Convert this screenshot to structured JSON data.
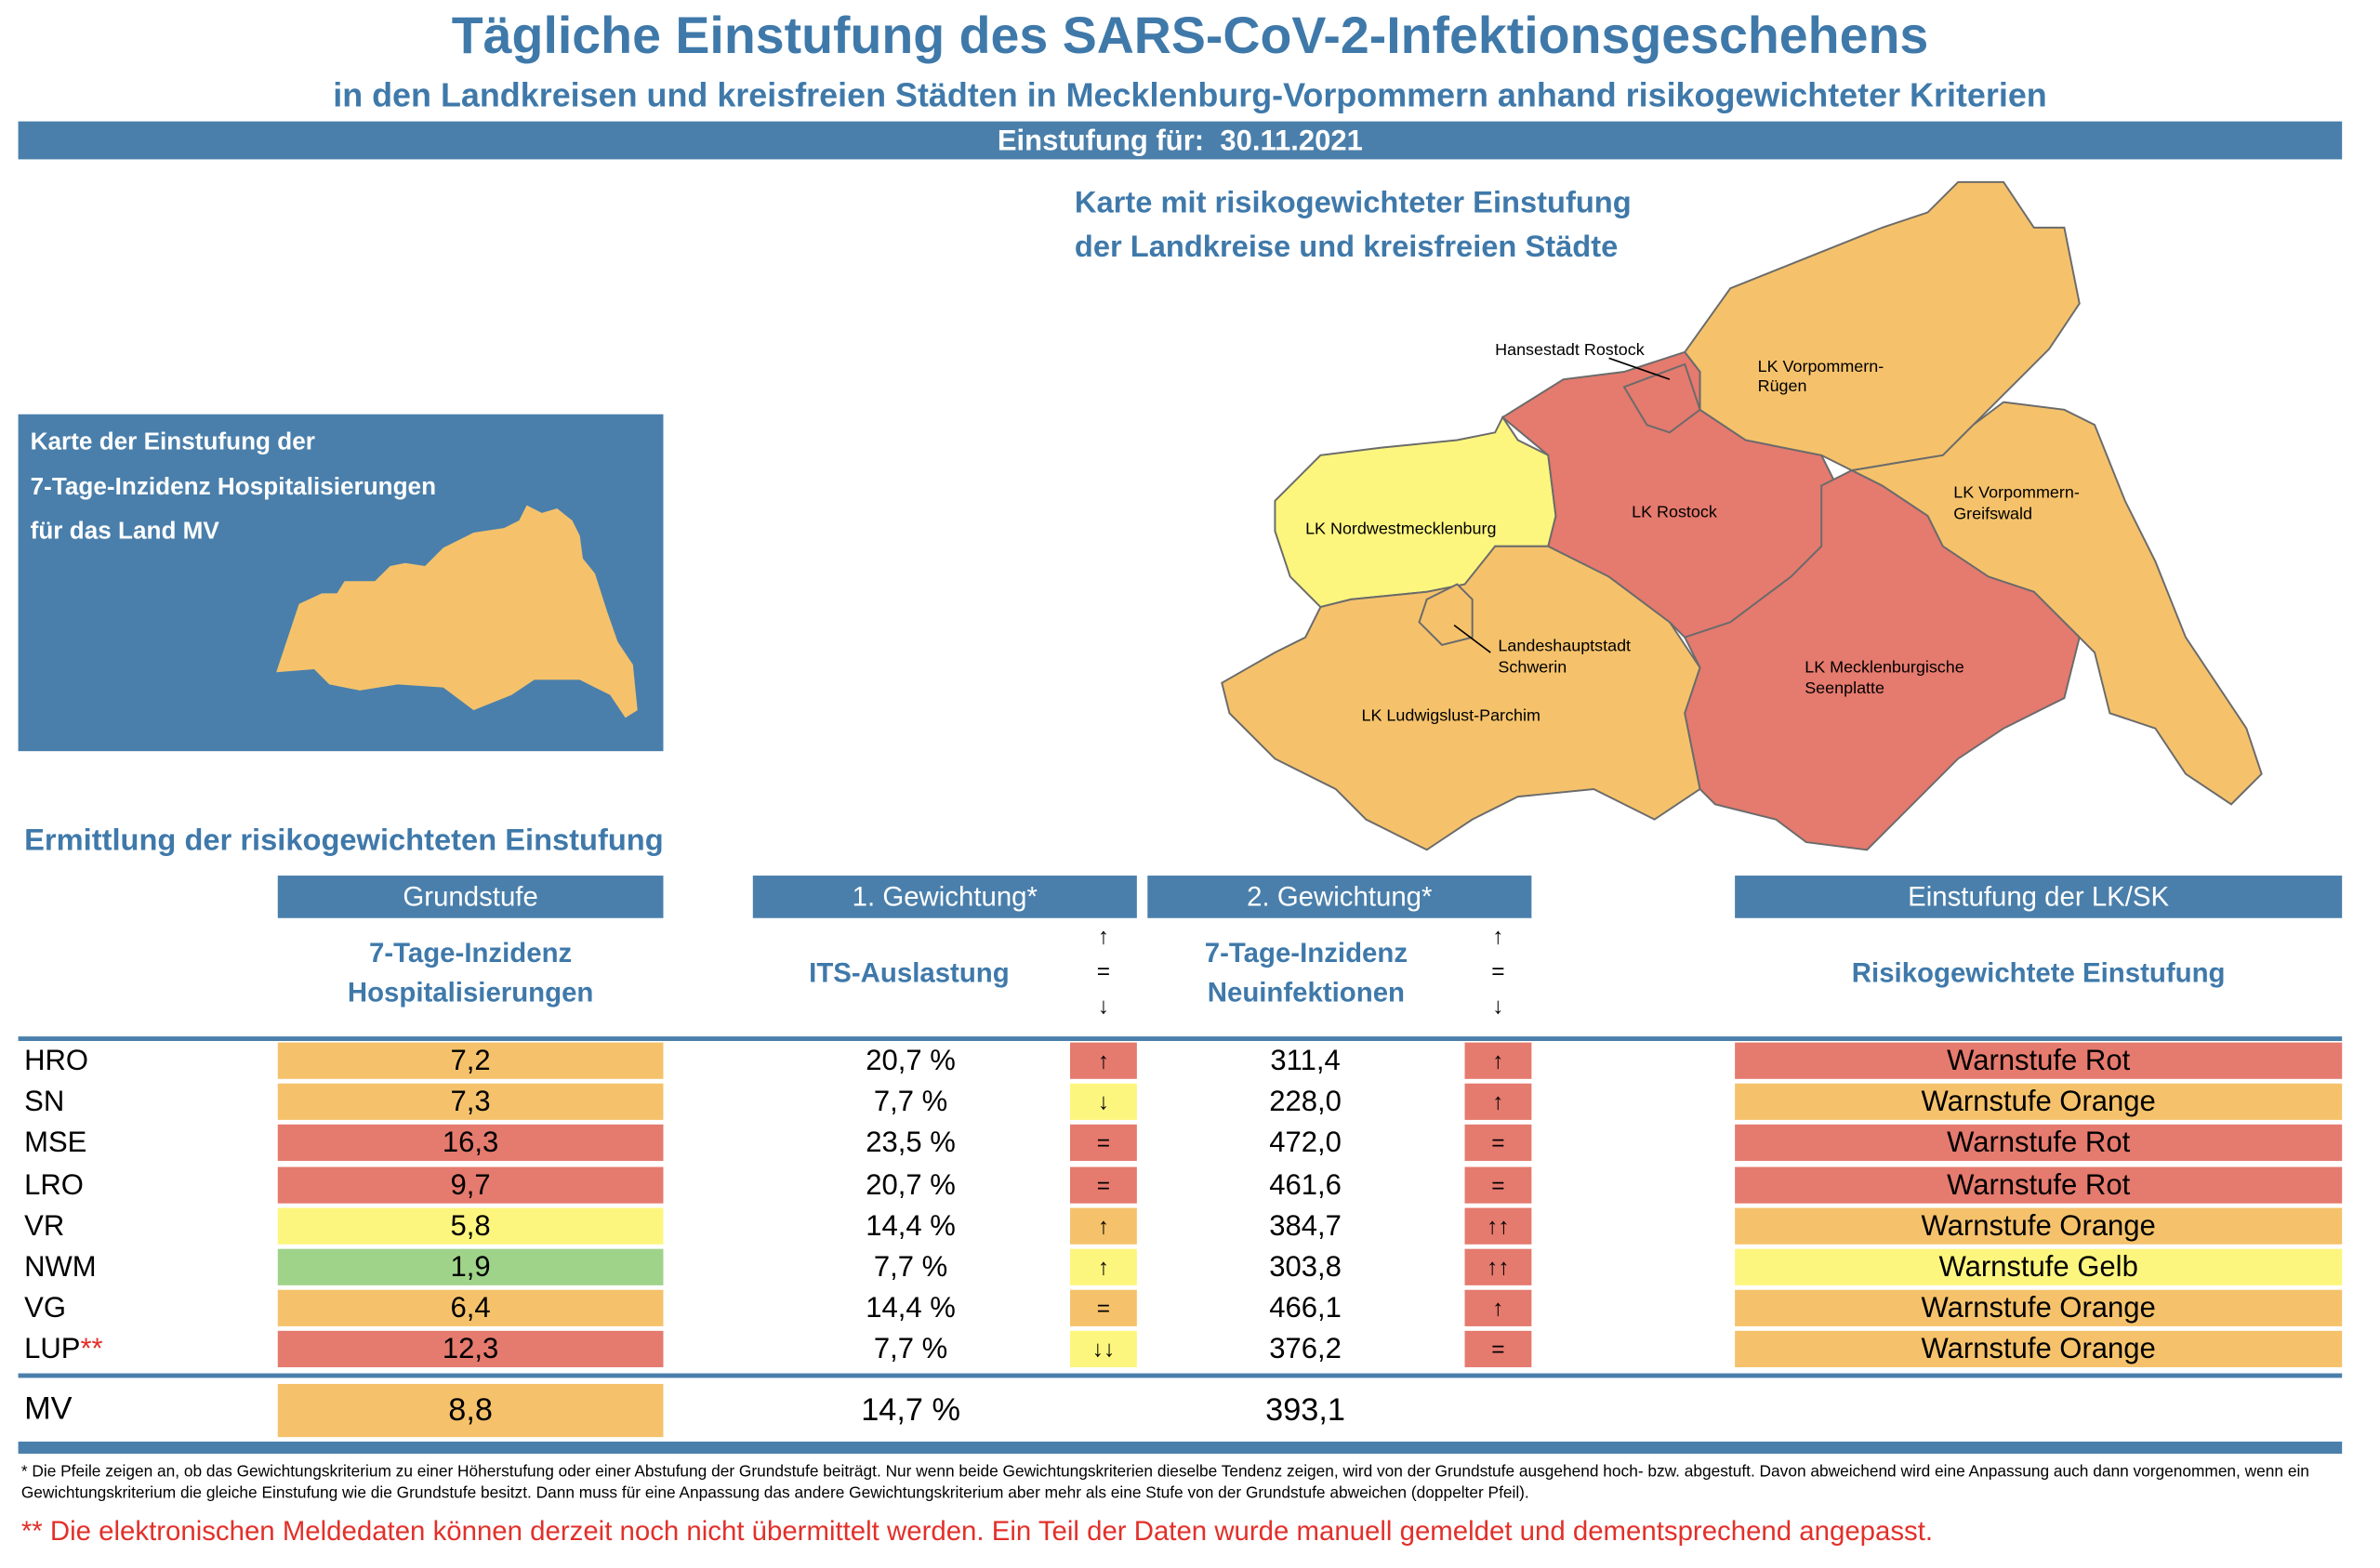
{
  "header": {
    "title": "Tägliche Einstufung des SARS-CoV-2-Infektionsgeschehens",
    "subtitle": "in den Landkreisen und kreisfreien Städten in Mecklenburg-Vorpommern anhand risikogewichteter Kriterien",
    "date_label": "Einstufung für:",
    "date": "30.11.2021"
  },
  "small_map": {
    "title": [
      "Karte der Einstufung der",
      "7-Tage-Inzidenz Hospitalisierungen",
      "für das Land MV"
    ],
    "color": "#f5c26b"
  },
  "map": {
    "title": [
      "Karte mit risikogewichteter Einstufung",
      "der Landkreise und kreisfreien Städte"
    ],
    "regions": [
      {
        "label": [
          "LK Nordwestmecklenburg"
        ],
        "color": "#fdf67e"
      },
      {
        "label": [
          "LK Ludwigslust-Parchim"
        ],
        "color": "#f5c26b"
      },
      {
        "label": [
          "Landeshauptstadt",
          "Schwerin"
        ],
        "color": "#f5c26b"
      },
      {
        "label": [
          "LK Rostock"
        ],
        "color": "#e57a6e"
      },
      {
        "label": [
          "Hansestadt Rostock"
        ],
        "color": "#e57a6e"
      },
      {
        "label": [
          "LK Vorpommern-",
          "Rügen"
        ],
        "color": "#f5c26b"
      },
      {
        "label": [
          "LK Vorpommern-",
          "Greifswald"
        ],
        "color": "#f5c26b"
      },
      {
        "label": [
          "LK Mecklenburgische",
          "Seenplatte"
        ],
        "color": "#e57a6e"
      }
    ]
  },
  "table": {
    "section_title": "Ermittlung der risikogewichteten Einstufung",
    "groups": [
      "Grundstufe",
      "1. Gewichtung*",
      "2. Gewichtung*",
      "Einstufung der LK/SK"
    ],
    "subheaders": [
      [
        "7-Tage-Inzidenz",
        "Hospitalisierungen"
      ],
      [
        "ITS-Auslastung"
      ],
      [
        "7-Tage-Inzidenz",
        "Neuinfektionen"
      ],
      [
        "Risikogewichtete Einstufung"
      ]
    ],
    "trend_legend": [
      "↑",
      "=",
      "↓"
    ],
    "rows": [
      {
        "code": "HRO",
        "hosp": {
          "text": "7,2",
          "color": "#f5c26b"
        },
        "its": "20,7 %",
        "its_trend": {
          "text": "↑",
          "color": "#e57a6e"
        },
        "inzidenz": "311,4",
        "inz_trend": {
          "text": "↑",
          "color": "#e57a6e"
        },
        "level": {
          "text": "Warnstufe Rot",
          "color": "#e57a6e"
        }
      },
      {
        "code": "SN",
        "hosp": {
          "text": "7,3",
          "color": "#f5c26b"
        },
        "its": "7,7 %",
        "its_trend": {
          "text": "↓",
          "color": "#fdf67e"
        },
        "inzidenz": "228,0",
        "inz_trend": {
          "text": "↑",
          "color": "#e57a6e"
        },
        "level": {
          "text": "Warnstufe Orange",
          "color": "#f5c26b"
        }
      },
      {
        "code": "MSE",
        "hosp": {
          "text": "16,3",
          "color": "#e57a6e"
        },
        "its": "23,5 %",
        "its_trend": {
          "text": "=",
          "color": "#e57a6e"
        },
        "inzidenz": "472,0",
        "inz_trend": {
          "text": "=",
          "color": "#e57a6e"
        },
        "level": {
          "text": "Warnstufe Rot",
          "color": "#e57a6e"
        }
      },
      {
        "code": "LRO",
        "hosp": {
          "text": "9,7",
          "color": "#e57a6e"
        },
        "its": "20,7 %",
        "its_trend": {
          "text": "=",
          "color": "#e57a6e"
        },
        "inzidenz": "461,6",
        "inz_trend": {
          "text": "=",
          "color": "#e57a6e"
        },
        "level": {
          "text": "Warnstufe Rot",
          "color": "#e57a6e"
        }
      },
      {
        "code": "VR",
        "hosp": {
          "text": "5,8",
          "color": "#fdf67e"
        },
        "its": "14,4 %",
        "its_trend": {
          "text": "↑",
          "color": "#f5c26b"
        },
        "inzidenz": "384,7",
        "inz_trend": {
          "text": "↑↑",
          "color": "#e57a6e"
        },
        "level": {
          "text": "Warnstufe Orange",
          "color": "#f5c26b"
        }
      },
      {
        "code": "NWM",
        "hosp": {
          "text": "1,9",
          "color": "#9fd38a"
        },
        "its": "7,7 %",
        "its_trend": {
          "text": "↑",
          "color": "#fdf67e"
        },
        "inzidenz": "303,8",
        "inz_trend": {
          "text": "↑↑",
          "color": "#e57a6e"
        },
        "level": {
          "text": "Warnstufe Gelb",
          "color": "#fdf67e"
        }
      },
      {
        "code": "VG",
        "hosp": {
          "text": "6,4",
          "color": "#f5c26b"
        },
        "its": "14,4 %",
        "its_trend": {
          "text": "=",
          "color": "#f5c26b"
        },
        "inzidenz": "466,1",
        "inz_trend": {
          "text": "↑",
          "color": "#e57a6e"
        },
        "level": {
          "text": "Warnstufe Orange",
          "color": "#f5c26b"
        }
      },
      {
        "code": "LUP",
        "note": "**",
        "hosp": {
          "text": "12,3",
          "color": "#e57a6e"
        },
        "its": "7,7 %",
        "its_trend": {
          "text": "↓↓",
          "color": "#fdf67e"
        },
        "inzidenz": "376,2",
        "inz_trend": {
          "text": "=",
          "color": "#e57a6e"
        },
        "level": {
          "text": "Warnstufe Orange",
          "color": "#f5c26b"
        }
      }
    ],
    "total": {
      "code": "MV",
      "hosp": {
        "text": "8,8",
        "color": "#f5c26b"
      },
      "its": "14,7 %",
      "inzidenz": "393,1"
    }
  },
  "footnotes": [
    "* Die Pfeile zeigen an, ob das Gewichtungskriterium zu einer Höherstufung oder einer Abstufung der Grundstufe beiträgt. Nur wenn beide Gewichtungskriterien dieselbe Tendenz zeigen, wird von der Grundstufe ausgehend hoch- bzw. abgestuft.  Davon abweichend wird eine Anpassung auch dann vorgenommen, wenn ein Gewichtungskriterium die gleiche Einstufung wie die Grundstufe besitzt. Dann muss für eine Anpassung das andere Gewichtungskriterium aber mehr als eine Stufe von der Grundstufe abweichen (doppelter Pfeil).",
    "** Die elektronischen Meldedaten können derzeit noch nicht übermittelt werden. Ein Teil der Daten wurde manuell gemeldet und dementsprechend angepasst."
  ]
}
